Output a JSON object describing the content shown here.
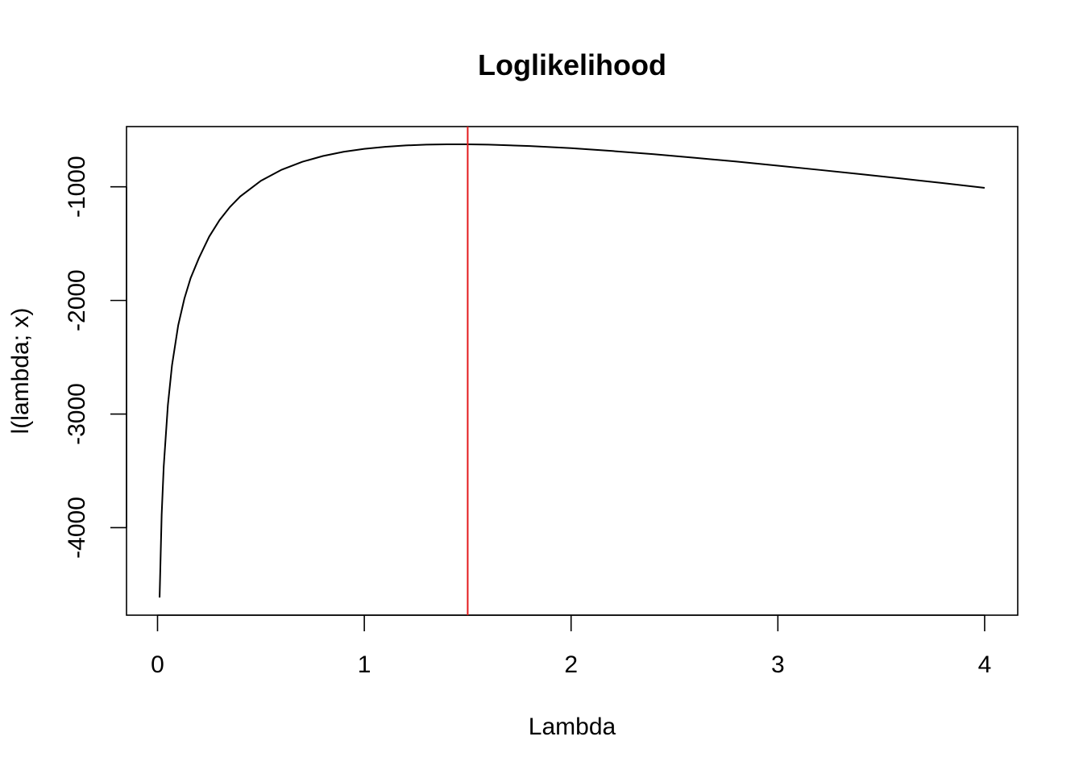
{
  "chart_data": {
    "type": "line",
    "title": "Loglikelihood",
    "xlabel": "Lambda",
    "ylabel": "l(lambda; x)",
    "xlim": [
      -0.15,
      4.16
    ],
    "ylim": [
      -4770,
      -470
    ],
    "xticks": [
      0,
      1,
      2,
      3,
      4
    ],
    "xtick_labels": [
      "0",
      "1",
      "2",
      "3",
      "4"
    ],
    "yticks": [
      -1000,
      -2000,
      -3000,
      -4000
    ],
    "ytick_labels": [
      "-1000",
      "-2000",
      "-3000",
      "-4000"
    ],
    "grid": false,
    "series": [
      {
        "color": "#000000",
        "x": [
          0.01,
          0.02,
          0.03,
          0.05,
          0.07,
          0.1,
          0.13,
          0.16,
          0.2,
          0.25,
          0.3,
          0.35,
          0.4,
          0.5,
          0.6,
          0.7,
          0.8,
          0.9,
          1.0,
          1.1,
          1.2,
          1.3,
          1.4,
          1.5,
          1.6,
          1.8,
          2.0,
          2.2,
          2.4,
          2.6,
          2.8,
          3.0,
          3.2,
          3.4,
          3.6,
          3.8,
          4.0
        ],
        "y": [
          -4615,
          -3886,
          -3460,
          -2923,
          -2571,
          -2219,
          -1983,
          -1804,
          -1628,
          -1438,
          -1293,
          -1178,
          -1085,
          -947,
          -850,
          -780,
          -729,
          -692,
          -666,
          -648,
          -636,
          -629,
          -626,
          -626,
          -629,
          -641,
          -660,
          -685,
          -713,
          -745,
          -778,
          -814,
          -851,
          -889,
          -928,
          -968,
          -1009
        ]
      }
    ],
    "vline": {
      "x": 1.5,
      "color": "#e41a1c"
    }
  }
}
